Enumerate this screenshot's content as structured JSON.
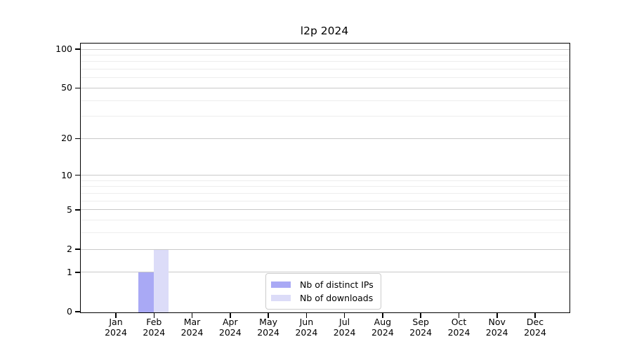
{
  "chart_data": {
    "type": "bar",
    "title": "l2p 2024",
    "categories": [
      "Jan 2024",
      "Feb 2024",
      "Mar 2024",
      "Apr 2024",
      "May 2024",
      "Jun 2024",
      "Jul 2024",
      "Aug 2024",
      "Sep 2024",
      "Oct 2024",
      "Nov 2024",
      "Dec 2024"
    ],
    "series": [
      {
        "name": "Nb of distinct IPs",
        "color": "#a9a9f5",
        "values": [
          0,
          1,
          0,
          0,
          0,
          0,
          0,
          0,
          0,
          0,
          0,
          0
        ]
      },
      {
        "name": "Nb of downloads",
        "color": "#dcdcf8",
        "values": [
          0,
          2,
          0,
          0,
          0,
          0,
          0,
          0,
          0,
          0,
          0,
          0
        ]
      }
    ],
    "xlabel": "",
    "ylabel": "",
    "yscale": "log1p",
    "ylim": [
      0,
      110
    ],
    "ytick_values": [
      0,
      1,
      2,
      5,
      10,
      20,
      50,
      100
    ],
    "ytick_labels": [
      "0",
      "1",
      "2",
      "5",
      "10",
      "20",
      "50",
      "100"
    ],
    "yminor_values": [
      3,
      4,
      6,
      7,
      8,
      9,
      30,
      40,
      60,
      70,
      80,
      90
    ],
    "grid": "both",
    "legend_position": "lower center"
  },
  "colors": {
    "grid_major": "#c9c9c9",
    "grid_minor": "#ededed",
    "axis": "#000000",
    "background": "#ffffff"
  },
  "legend": {
    "items": [
      {
        "label": "Nb of distinct IPs"
      },
      {
        "label": "Nb of downloads"
      }
    ]
  }
}
